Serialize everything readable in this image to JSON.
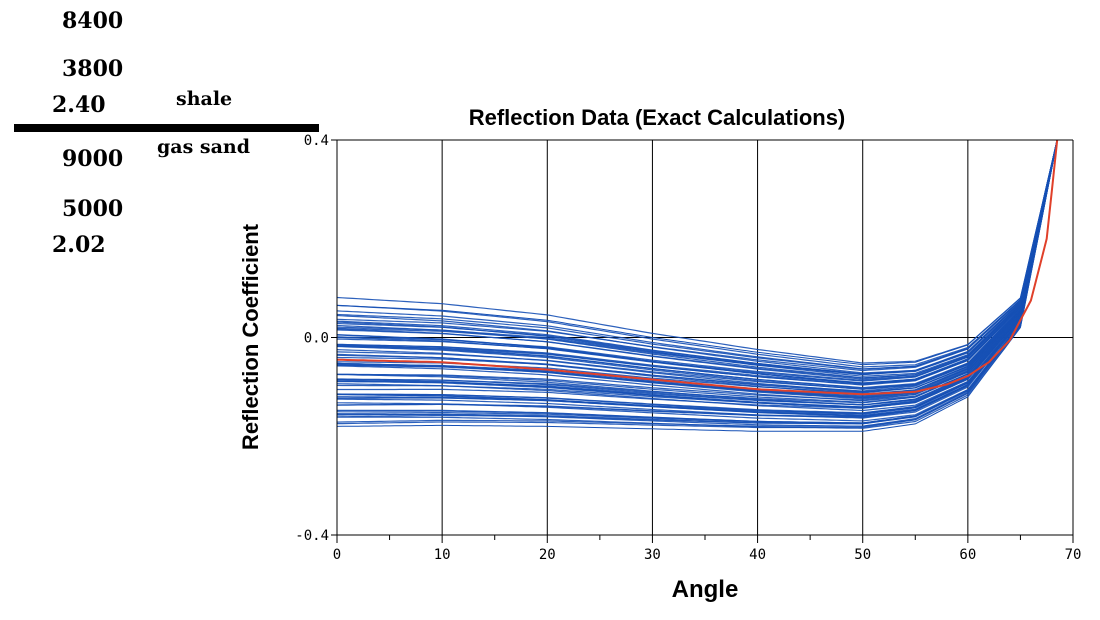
{
  "layers": {
    "upper": {
      "name": "shale",
      "vp": "8400",
      "vs": "3800",
      "density": "2.40"
    },
    "lower": {
      "name": "gas sand",
      "vp": "9000",
      "vs": "5000",
      "density": "2.02"
    }
  },
  "colors": {
    "realizations": "#1650b5",
    "mean_curve": "#e0402a",
    "grid": "#000000"
  },
  "chart_data": {
    "type": "line",
    "title": "Reflection Data (Exact Calculations)",
    "xlabel": "Angle",
    "ylabel": "Reflection Coefficient",
    "xlim": [
      0,
      70
    ],
    "ylim": [
      -0.4,
      0.4
    ],
    "x_ticks": [
      0,
      10,
      20,
      30,
      40,
      50,
      60,
      70
    ],
    "x_tick_labels": [
      "0",
      "10",
      "20",
      "30",
      "40",
      "50",
      "60",
      "70"
    ],
    "y_ticks": [
      -0.4,
      0.0,
      0.4
    ],
    "y_tick_labels": [
      "-0.4",
      "0.0",
      "0.4"
    ],
    "grid": "vertical lines at x ticks, horizontal line at y = 0",
    "series": [
      {
        "role": "realizations envelope (many blue curves)",
        "color": "#1650b5",
        "x": [
          0,
          10,
          20,
          30,
          40,
          50,
          55,
          60,
          65,
          68.5
        ],
        "upper": [
          0.065,
          0.055,
          0.035,
          0.0,
          -0.03,
          -0.055,
          -0.05,
          -0.015,
          0.08,
          0.4
        ],
        "lower": [
          -0.18,
          -0.178,
          -0.18,
          -0.185,
          -0.19,
          -0.19,
          -0.175,
          -0.12,
          0.02,
          0.4
        ]
      },
      {
        "role": "mean curve (red)",
        "color": "#e0402a",
        "x": [
          0,
          10,
          20,
          30,
          40,
          50,
          55,
          58,
          60,
          62,
          64,
          66,
          67.5,
          68.5
        ],
        "y": [
          -0.045,
          -0.05,
          -0.065,
          -0.085,
          -0.105,
          -0.115,
          -0.11,
          -0.095,
          -0.078,
          -0.05,
          -0.005,
          0.075,
          0.2,
          0.4
        ]
      }
    ]
  }
}
